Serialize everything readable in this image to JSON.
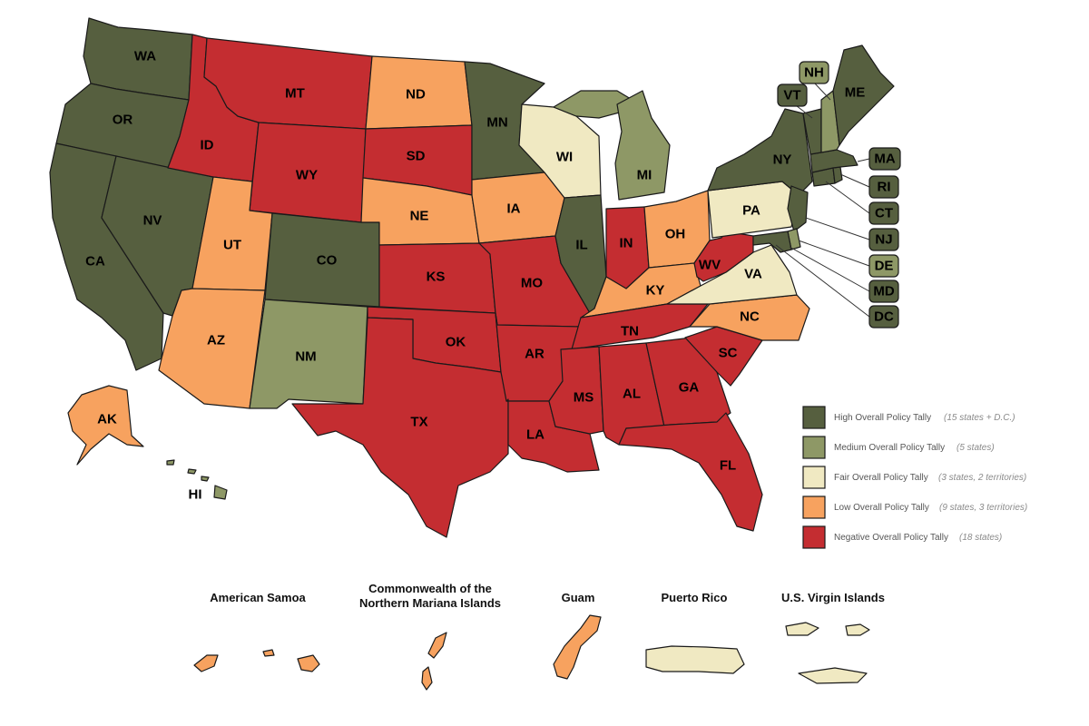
{
  "colors": {
    "high": "#565f3f",
    "medium": "#8e9866",
    "fair": "#f0e9c2",
    "low": "#f7a25f",
    "negative": "#c42d31"
  },
  "states": {
    "WA": {
      "label": "WA",
      "tier": "high"
    },
    "OR": {
      "label": "OR",
      "tier": "high"
    },
    "CA": {
      "label": "CA",
      "tier": "high"
    },
    "NV": {
      "label": "NV",
      "tier": "high"
    },
    "ID": {
      "label": "ID",
      "tier": "negative"
    },
    "MT": {
      "label": "MT",
      "tier": "negative"
    },
    "WY": {
      "label": "WY",
      "tier": "negative"
    },
    "UT": {
      "label": "UT",
      "tier": "low"
    },
    "AZ": {
      "label": "AZ",
      "tier": "low"
    },
    "CO": {
      "label": "CO",
      "tier": "high"
    },
    "NM": {
      "label": "NM",
      "tier": "medium"
    },
    "ND": {
      "label": "ND",
      "tier": "low"
    },
    "SD": {
      "label": "SD",
      "tier": "negative"
    },
    "NE": {
      "label": "NE",
      "tier": "low"
    },
    "KS": {
      "label": "KS",
      "tier": "negative"
    },
    "OK": {
      "label": "OK",
      "tier": "negative"
    },
    "TX": {
      "label": "TX",
      "tier": "negative"
    },
    "MN": {
      "label": "MN",
      "tier": "high"
    },
    "IA": {
      "label": "IA",
      "tier": "low"
    },
    "MO": {
      "label": "MO",
      "tier": "negative"
    },
    "AR": {
      "label": "AR",
      "tier": "negative"
    },
    "LA": {
      "label": "LA",
      "tier": "negative"
    },
    "WI": {
      "label": "WI",
      "tier": "fair"
    },
    "IL": {
      "label": "IL",
      "tier": "high"
    },
    "MI": {
      "label": "MI",
      "tier": "medium"
    },
    "IN": {
      "label": "IN",
      "tier": "negative"
    },
    "OH": {
      "label": "OH",
      "tier": "low"
    },
    "KY": {
      "label": "KY",
      "tier": "low"
    },
    "TN": {
      "label": "TN",
      "tier": "negative"
    },
    "MS": {
      "label": "MS",
      "tier": "negative"
    },
    "AL": {
      "label": "AL",
      "tier": "negative"
    },
    "GA": {
      "label": "GA",
      "tier": "negative"
    },
    "FL": {
      "label": "FL",
      "tier": "negative"
    },
    "SC": {
      "label": "SC",
      "tier": "negative"
    },
    "NC": {
      "label": "NC",
      "tier": "low"
    },
    "VA": {
      "label": "VA",
      "tier": "fair"
    },
    "WV": {
      "label": "WV",
      "tier": "negative"
    },
    "PA": {
      "label": "PA",
      "tier": "fair"
    },
    "NY": {
      "label": "NY",
      "tier": "high"
    },
    "ME": {
      "label": "ME",
      "tier": "high"
    },
    "VT": {
      "label": "VT",
      "tier": "high"
    },
    "NH": {
      "label": "NH",
      "tier": "medium"
    },
    "MA": {
      "label": "MA",
      "tier": "high"
    },
    "RI": {
      "label": "RI",
      "tier": "high"
    },
    "CT": {
      "label": "CT",
      "tier": "high"
    },
    "NJ": {
      "label": "NJ",
      "tier": "high"
    },
    "DE": {
      "label": "DE",
      "tier": "medium"
    },
    "MD": {
      "label": "MD",
      "tier": "high"
    },
    "DC": {
      "label": "DC",
      "tier": "high"
    },
    "AK": {
      "label": "AK",
      "tier": "low"
    },
    "HI": {
      "label": "HI",
      "tier": "medium"
    }
  },
  "legend": [
    {
      "tier": "high",
      "label": "High Overall Policy Tally",
      "note": "(15 states + D.C.)"
    },
    {
      "tier": "medium",
      "label": "Medium Overall Policy Tally",
      "note": "(5 states)"
    },
    {
      "tier": "fair",
      "label": "Fair Overall Policy Tally",
      "note": "(3 states, 2 territories)"
    },
    {
      "tier": "low",
      "label": "Low Overall Policy Tally",
      "note": "(9 states, 3 territories)"
    },
    {
      "tier": "negative",
      "label": "Negative Overall Policy Tally",
      "note": "(18 states)"
    }
  ],
  "territories": {
    "as": {
      "title": "American Samoa",
      "tier": "low"
    },
    "mp": {
      "title_line1": "Commonwealth of the",
      "title_line2": "Northern Mariana Islands",
      "tier": "low"
    },
    "gu": {
      "title": "Guam",
      "tier": "low"
    },
    "pr": {
      "title": "Puerto Rico",
      "tier": "fair"
    },
    "vi": {
      "title": "U.S. Virgin Islands",
      "tier": "fair"
    }
  }
}
